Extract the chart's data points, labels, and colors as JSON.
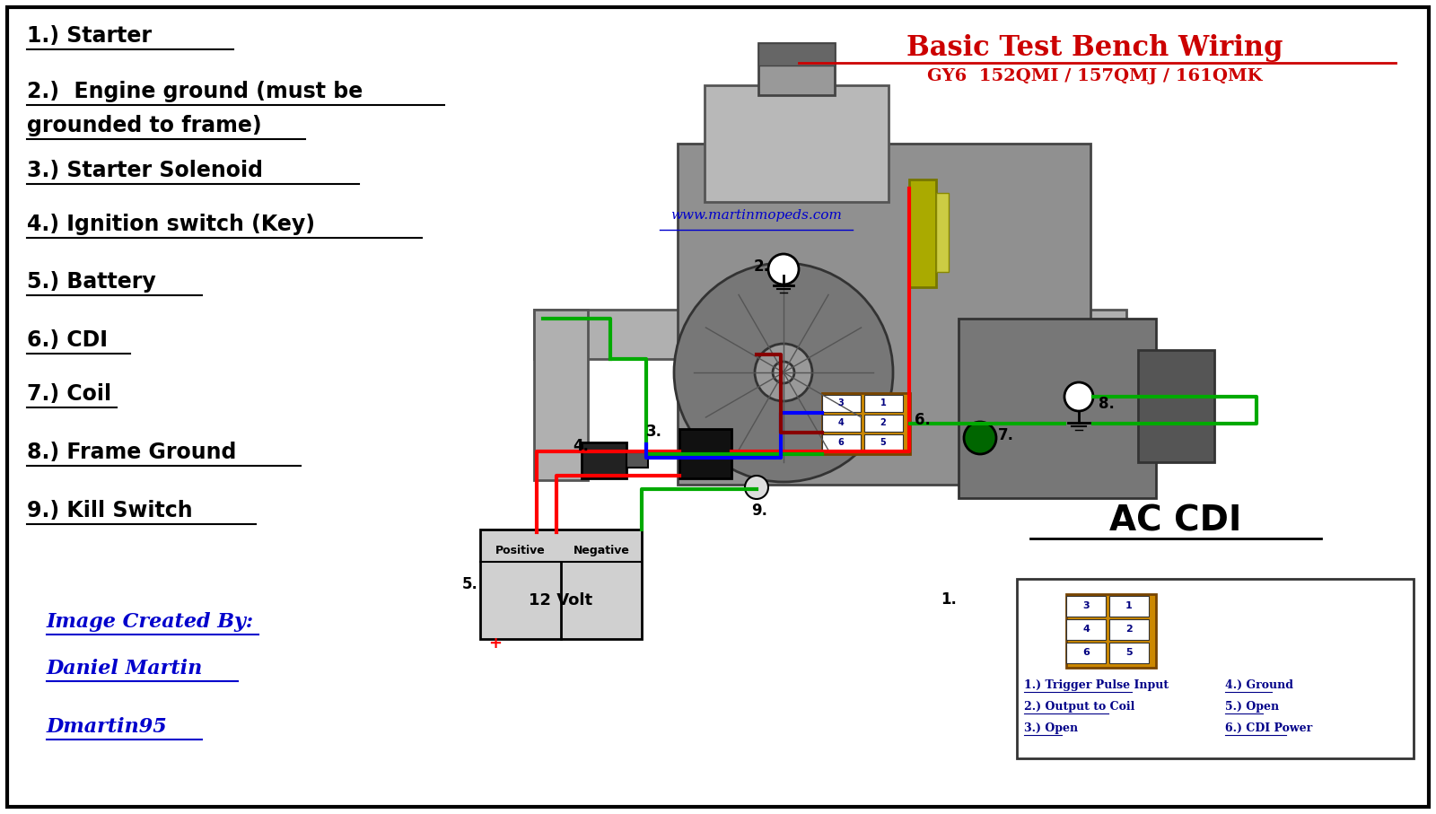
{
  "title": "Basic Test Bench Wiring",
  "subtitle": "GY6  152QMI / 157QMJ / 161QMK",
  "title_color": "#cc0000",
  "bg_color": "#ffffff",
  "border_color": "#000000",
  "left_labels": [
    "1.) Starter",
    "2.)  Engine ground (must be",
    "grounded to frame)",
    "3.) Starter Solenoid",
    "4.) Ignition switch (Key)",
    "5.) Battery",
    "6.) CDI",
    "7.) Coil",
    "8.) Frame Ground",
    "9.) Kill Switch"
  ],
  "label_underline_widths": [
    230,
    465,
    310,
    370,
    440,
    195,
    115,
    100,
    305,
    255
  ],
  "credit_line1": "Image Created By:",
  "credit_line2": "Daniel Martin",
  "credit_line3": "Dmartin95",
  "credit_color": "#0000cc",
  "website": "www.martinmopeds.com",
  "website_color": "#0000cc",
  "ac_cdi_label": "AC CDI",
  "cdi_pin_labels_left": [
    "1.) Trigger Pulse Input",
    "2.) Output to Coil",
    "3.) Open"
  ],
  "cdi_pin_labels_right": [
    "4.) Ground",
    "5.) Open",
    "6.) CDI Power"
  ],
  "wire_red": "#ff0000",
  "wire_green": "#00aa00",
  "wire_blue": "#0000ff",
  "wire_maroon": "#880000",
  "cdi_orange": "#cc8800",
  "solenoid_color": "#111111",
  "pin_nums": [
    [
      "3",
      "1"
    ],
    [
      "4",
      "2"
    ],
    [
      "6",
      "5"
    ]
  ]
}
